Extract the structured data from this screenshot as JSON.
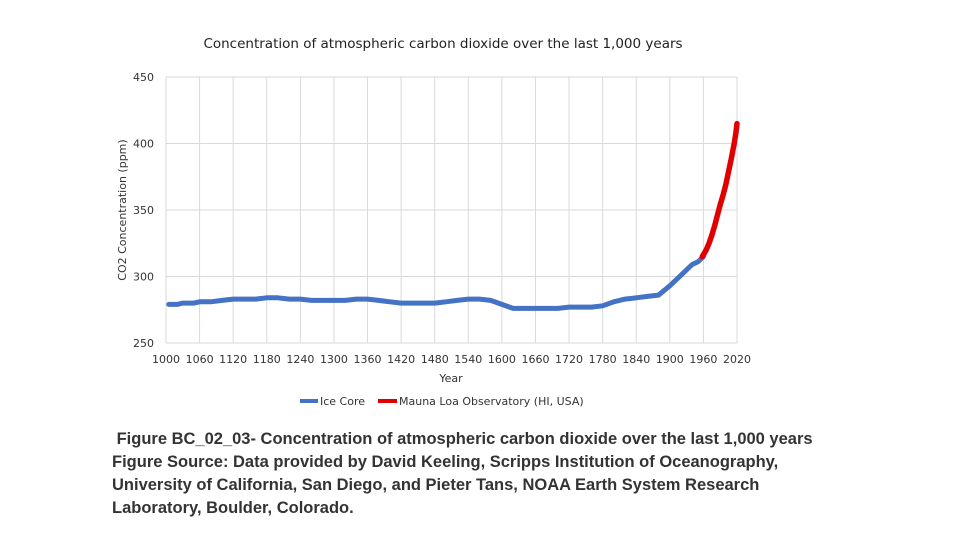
{
  "colors": {
    "ice_core": "#4472C4",
    "mauna_loa": "#E00000",
    "grid": "#D9D9D9"
  },
  "chart_data": {
    "type": "line",
    "title": "Concentration of atmospheric carbon dioxide over the last 1,000 years",
    "xlabel": "Year",
    "ylabel": "CO2 Concentration (ppm)",
    "xlim": [
      1000,
      2020
    ],
    "ylim": [
      250,
      450
    ],
    "x_ticks": [
      1000,
      1060,
      1120,
      1180,
      1240,
      1300,
      1360,
      1420,
      1480,
      1540,
      1600,
      1660,
      1720,
      1780,
      1840,
      1900,
      1960,
      2020
    ],
    "y_ticks": [
      250,
      300,
      350,
      400,
      450
    ],
    "grid": "both",
    "legend": "bottom",
    "series": [
      {
        "name": "Ice Core",
        "color": "#4472C4",
        "points": [
          [
            1005,
            279
          ],
          [
            1020,
            279
          ],
          [
            1030,
            280
          ],
          [
            1050,
            280
          ],
          [
            1060,
            281
          ],
          [
            1080,
            281
          ],
          [
            1100,
            282
          ],
          [
            1120,
            283
          ],
          [
            1140,
            283
          ],
          [
            1160,
            283
          ],
          [
            1180,
            284
          ],
          [
            1200,
            284
          ],
          [
            1220,
            283
          ],
          [
            1240,
            283
          ],
          [
            1260,
            282
          ],
          [
            1280,
            282
          ],
          [
            1300,
            282
          ],
          [
            1320,
            282
          ],
          [
            1340,
            283
          ],
          [
            1360,
            283
          ],
          [
            1380,
            282
          ],
          [
            1400,
            281
          ],
          [
            1420,
            280
          ],
          [
            1440,
            280
          ],
          [
            1460,
            280
          ],
          [
            1480,
            280
          ],
          [
            1500,
            281
          ],
          [
            1520,
            282
          ],
          [
            1540,
            283
          ],
          [
            1560,
            283
          ],
          [
            1580,
            282
          ],
          [
            1600,
            279
          ],
          [
            1620,
            276
          ],
          [
            1640,
            276
          ],
          [
            1660,
            276
          ],
          [
            1680,
            276
          ],
          [
            1700,
            276
          ],
          [
            1720,
            277
          ],
          [
            1740,
            277
          ],
          [
            1760,
            277
          ],
          [
            1780,
            278
          ],
          [
            1800,
            281
          ],
          [
            1820,
            283
          ],
          [
            1840,
            284
          ],
          [
            1860,
            285
          ],
          [
            1880,
            286
          ],
          [
            1900,
            293
          ],
          [
            1920,
            301
          ],
          [
            1940,
            309
          ],
          [
            1950,
            311
          ],
          [
            1960,
            315
          ]
        ]
      },
      {
        "name": "Mauna Loa Observatory (HI, USA)",
        "color": "#E00000",
        "points": [
          [
            1958,
            315
          ],
          [
            1965,
            320
          ],
          [
            1970,
            325
          ],
          [
            1975,
            331
          ],
          [
            1980,
            338
          ],
          [
            1985,
            346
          ],
          [
            1990,
            354
          ],
          [
            1995,
            361
          ],
          [
            2000,
            369
          ],
          [
            2005,
            379
          ],
          [
            2010,
            389
          ],
          [
            2015,
            400
          ],
          [
            2018,
            408
          ],
          [
            2020,
            415
          ]
        ]
      }
    ]
  },
  "caption": {
    "line1": " Figure BC_02_03- Concentration of atmospheric carbon dioxide over the last 1,000 years",
    "line2": "Figure Source: Data provided by David Keeling, Scripps Institution of Oceanography,",
    "line3": "University of California, San Diego, and Pieter Tans, NOAA Earth System Research",
    "line4": "Laboratory, Boulder, Colorado."
  }
}
